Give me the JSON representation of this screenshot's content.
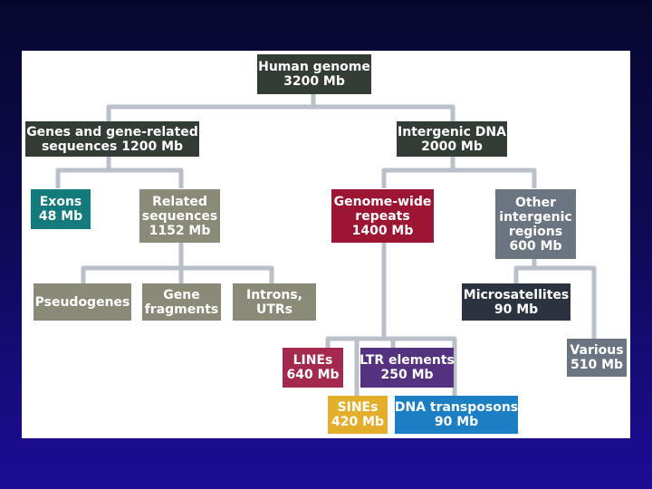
{
  "colors": {
    "connector": "#b9c0c9",
    "dark": "#343d35",
    "teal": "#157a7b",
    "olive": "#8b8a78",
    "crimson": "#9c1634",
    "slate": "#6b7582",
    "navy": "#2b3341",
    "magenta": "#a32a4e",
    "purple": "#55327f",
    "gold": "#e2ae2c",
    "blue": "#1c7ec3"
  },
  "nodes": {
    "human_genome": {
      "line1": "Human genome",
      "line2": "3200 Mb"
    },
    "genes": {
      "line1": "Genes and gene-related",
      "line2": "sequences 1200 Mb"
    },
    "intergenic": {
      "line1": "Intergenic DNA",
      "line2": "2000 Mb"
    },
    "exons": {
      "line1": "Exons",
      "line2": "48 Mb"
    },
    "related": {
      "line1": "Related",
      "line2": "sequences",
      "line3": "1152 Mb"
    },
    "repeats": {
      "line1": "Genome-wide",
      "line2": "repeats",
      "line3": "1400 Mb"
    },
    "other": {
      "line1": "Other",
      "line2": "intergenic",
      "line3": "regions",
      "line4": "600 Mb"
    },
    "pseudogenes": {
      "line1": "Pseudogenes"
    },
    "fragments": {
      "line1": "Gene",
      "line2": "fragments"
    },
    "introns": {
      "line1": "Introns,",
      "line2": "UTRs"
    },
    "microsat": {
      "line1": "Microsatellites",
      "line2": "90 Mb"
    },
    "various": {
      "line1": "Various",
      "line2": "510 Mb"
    },
    "lines": {
      "line1": "LINEs",
      "line2": "640 Mb"
    },
    "ltr": {
      "line1": "LTR elements",
      "line2": "250 Mb"
    },
    "sines": {
      "line1": "SINEs",
      "line2": "420 Mb"
    },
    "dna": {
      "line1": "DNA transposons",
      "line2": "90 Mb"
    }
  }
}
